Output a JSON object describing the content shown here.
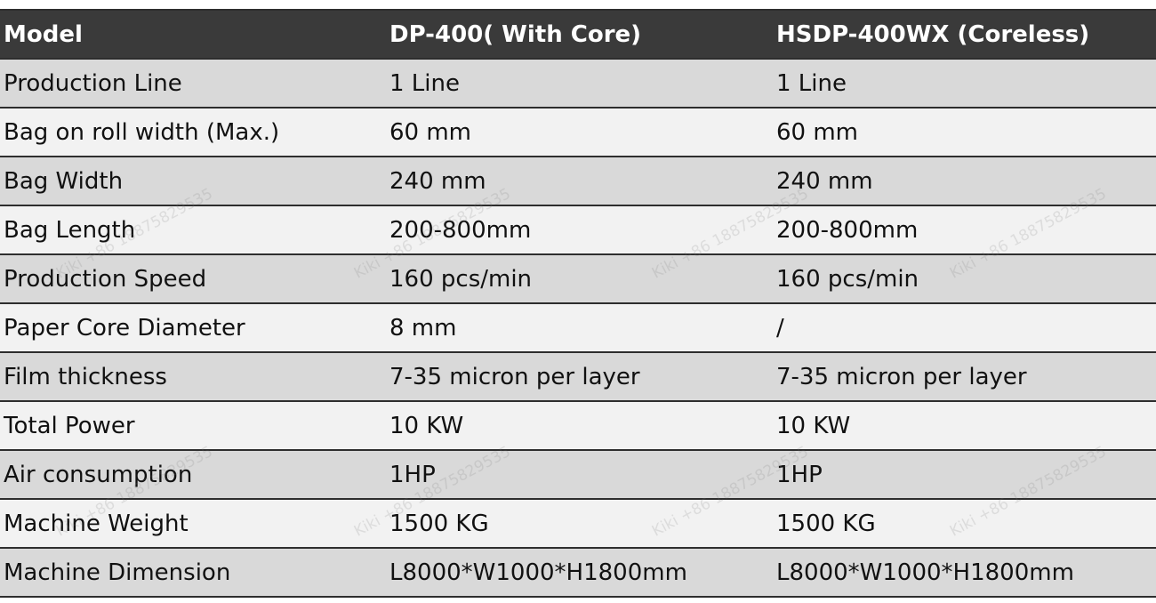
{
  "table": {
    "headers": [
      "Model",
      "DP-400( With Core)",
      "HSDP-400WX (Coreless)"
    ],
    "rows": [
      [
        "Production Line",
        "1 Line",
        "1 Line"
      ],
      [
        "Bag on roll width (Max.)",
        "60 mm",
        "60 mm"
      ],
      [
        "Bag Width",
        "240 mm",
        "240 mm"
      ],
      [
        "Bag Length",
        "200-800mm",
        "200-800mm"
      ],
      [
        "Production Speed",
        "160 pcs/min",
        "160 pcs/min"
      ],
      [
        "Paper Core Diameter",
        "8 mm",
        "/"
      ],
      [
        "Film thickness",
        "7-35 micron per layer",
        "7-35 micron per layer"
      ],
      [
        "Total Power",
        "10 KW",
        "10 KW"
      ],
      [
        "Air consumption",
        "1HP",
        "1HP"
      ],
      [
        "Machine Weight",
        "1500 KG",
        "1500 KG"
      ],
      [
        "Machine Dimension",
        "L8000*W1000*H1800mm",
        "L8000*W1000*H1800mm"
      ]
    ]
  },
  "watermark": "Kiki +86 18875829535",
  "colors": {
    "header_bg": "#3a3a3a",
    "header_text": "#ffffff",
    "row_dark": "#d9d9d9",
    "row_light": "#f2f2f2"
  }
}
